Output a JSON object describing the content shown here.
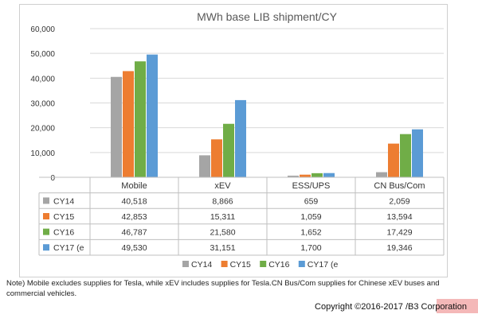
{
  "chart_data": {
    "type": "bar",
    "title": "MWh base LIB shipment/CY",
    "categories": [
      "Mobile",
      "xEV",
      "ESS/UPS",
      "CN Bus/Com"
    ],
    "series": [
      {
        "name": "CY14",
        "values": [
          40518,
          8866,
          659,
          2059
        ],
        "labels": [
          "40,518",
          "8,866",
          "659",
          "2,059"
        ],
        "color": "#a5a5a5"
      },
      {
        "name": "CY15",
        "values": [
          42853,
          15311,
          1059,
          13594
        ],
        "labels": [
          "42,853",
          "15,311",
          "1,059",
          "13,594"
        ],
        "color": "#ed7d31"
      },
      {
        "name": "CY16",
        "values": [
          46787,
          21580,
          1652,
          17429
        ],
        "labels": [
          "46,787",
          "21,580",
          "1,652",
          "17,429"
        ],
        "color": "#70ad47"
      },
      {
        "name": "CY17 (e",
        "values": [
          49530,
          31151,
          1700,
          19346
        ],
        "labels": [
          "49,530",
          "31,151",
          "1,700",
          "19,346"
        ],
        "color": "#5b9bd5"
      }
    ],
    "ylim": [
      0,
      60000
    ],
    "yticks": [
      0,
      10000,
      20000,
      30000,
      40000,
      50000,
      60000
    ],
    "ytick_labels": [
      "0",
      "10,000",
      "20,000",
      "30,000",
      "40,000",
      "50,000",
      "60,000"
    ],
    "grid": true,
    "legend_position": "bottom"
  },
  "note": "Note) Mobile excludes supplies for Tesla, while xEV includes supplies for Tesla.CN Bus/Com supplies for Chinese xEV buses and commercial vehicles.",
  "copyright": "Copyright ©2016-2017 /B3 Corporation"
}
